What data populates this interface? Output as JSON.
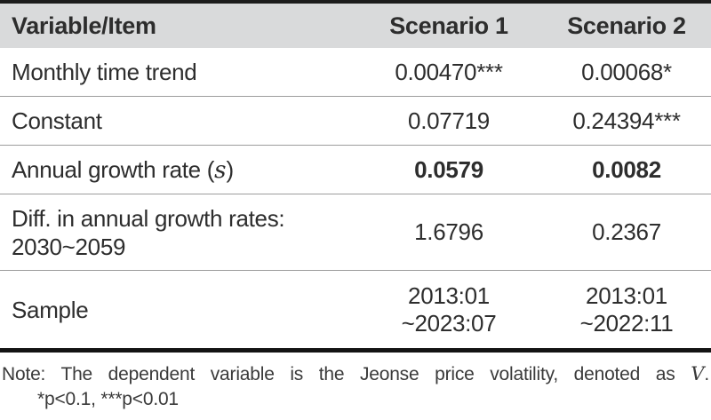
{
  "colors": {
    "header_bg": "#d9dadb",
    "rule_dark": "#1c1c1c",
    "rule_light": "#9c9c9c",
    "text": "#2d2d2d"
  },
  "table": {
    "header": {
      "col1": "Variable/Item",
      "col2": "Scenario 1",
      "col3": "Scenario 2"
    },
    "rows": [
      {
        "label": "Monthly time trend",
        "scenario1": "0.00470***",
        "scenario2": "0.00068*"
      },
      {
        "label": "Constant",
        "scenario1": "0.07719",
        "scenario2": "0.24394***"
      },
      {
        "label_prefix": "Annual growth rate (",
        "label_var": "s",
        "label_suffix": ")",
        "scenario1": "0.0579",
        "scenario2": "0.0082"
      },
      {
        "label_line1": "Diff. in annual growth rates:",
        "label_line2": "2030~2059",
        "scenario1": "1.6796",
        "scenario2": "0.2367"
      },
      {
        "label": "Sample",
        "scenario1_line1": "2013:01",
        "scenario1_line2": "~2023:07",
        "scenario2_line1": "2013:01",
        "scenario2_line2": "~2022:11"
      }
    ]
  },
  "note": {
    "line1_prefix": "Note: The dependent variable is the Jeonse price volatility, denoted as ",
    "line1_var": "V",
    "line1_suffix": ".",
    "line2": "*p<0.1, ***p<0.01"
  }
}
